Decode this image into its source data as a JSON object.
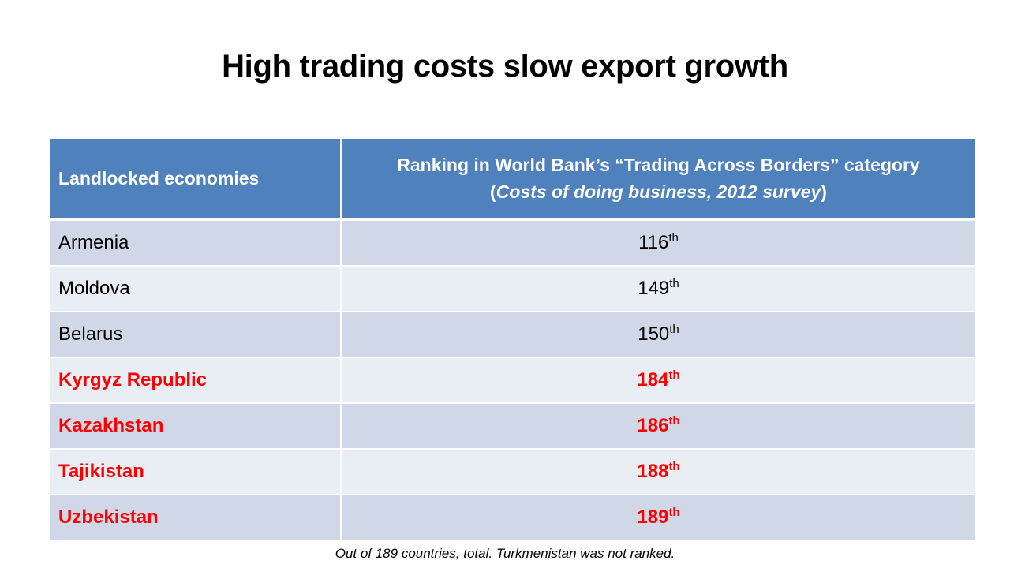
{
  "slide": {
    "title": "High trading costs slow export growth",
    "footnote": "Out of 189 countries, total. Turkmenistan was not ranked."
  },
  "table": {
    "header": {
      "col1": "Landlocked economies",
      "col2_line1": "Ranking in World Bank’s “Trading Across Borders” category",
      "col2_paren_open": "(",
      "col2_line2": "Costs of doing business, 2012 survey",
      "col2_paren_close": ")"
    },
    "rows": [
      {
        "country": "Armenia",
        "rank": "116",
        "suffix": "th",
        "highlight": false
      },
      {
        "country": "Moldova",
        "rank": "149",
        "suffix": "th",
        "highlight": false
      },
      {
        "country": "Belarus",
        "rank": "150",
        "suffix": "th",
        "highlight": false
      },
      {
        "country": "Kyrgyz Republic",
        "rank": "184",
        "suffix": "th",
        "highlight": true
      },
      {
        "country": "Kazakhstan",
        "rank": "186",
        "suffix": "th",
        "highlight": true
      },
      {
        "country": "Tajikistan",
        "rank": "188",
        "suffix": "th",
        "highlight": true
      },
      {
        "country": "Uzbekistan",
        "rank": "189",
        "suffix": "th",
        "highlight": true
      }
    ]
  },
  "colors": {
    "header_bg": "#4f81bd",
    "row_dark": "#d0d8e8",
    "row_light": "#e9edf4",
    "highlight_text": "#ff0000"
  }
}
